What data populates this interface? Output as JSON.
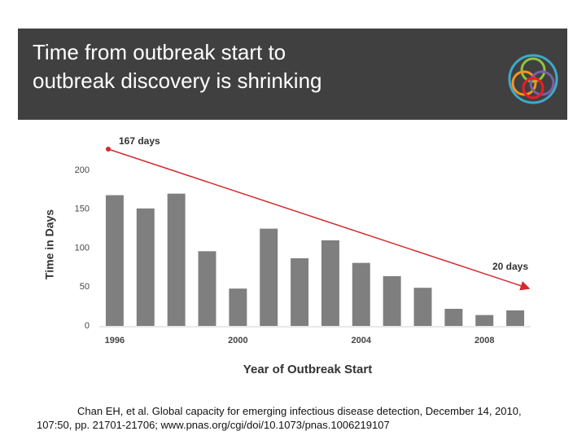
{
  "header": {
    "title_lines": [
      "Time from outbreak start to",
      "outbreak discovery is shrinking"
    ]
  },
  "chart_data": {
    "type": "bar",
    "categories": [
      "1996",
      null,
      null,
      null,
      "2000",
      null,
      null,
      null,
      "2004",
      null,
      null,
      null,
      "2008",
      null
    ],
    "values": [
      168,
      151,
      170,
      96,
      48,
      125,
      87,
      110,
      81,
      64,
      49,
      22,
      14,
      20
    ],
    "color": "#7f7f7f",
    "ylim": [
      0,
      200
    ],
    "yticks": [
      0,
      50,
      100,
      150,
      200
    ],
    "grid": false,
    "y_label": "Time in Days",
    "x_label": "Year of Outbreak Start",
    "annotations": [
      "167 days",
      "20 days"
    ],
    "trend_color": "#d42a2f"
  },
  "citation": "Chan EH, et al. Global capacity for emerging infectious disease detection, December 14, 2010, 107:50, pp. 21701-21706; www.pnas.org/cgi/doi/10.1073/pnas.1006219107"
}
